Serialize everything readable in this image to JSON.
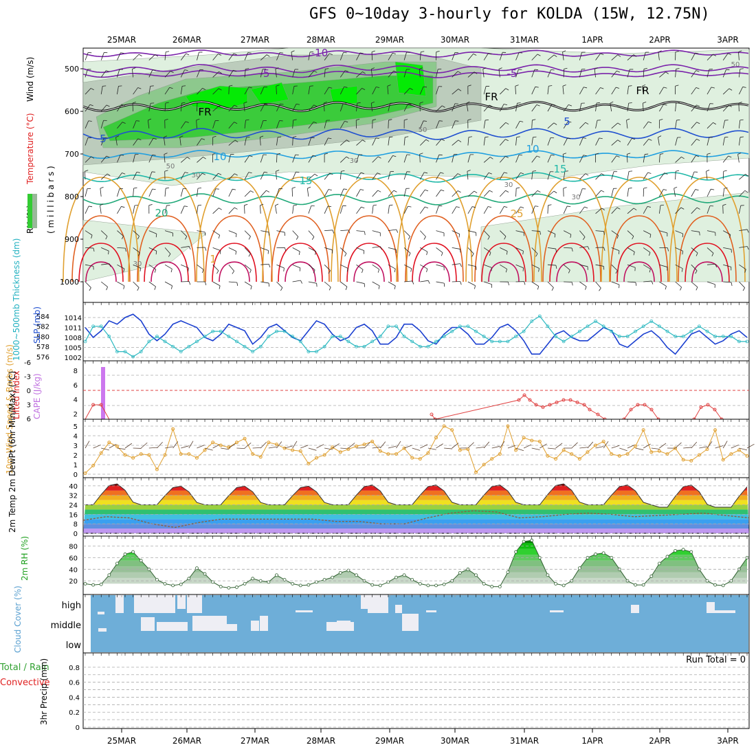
{
  "title": "GFS 0~10day 3-hourly for KOLDA (15W, 12.75N)",
  "date_labels": [
    "25MAR",
    "26MAR",
    "27MAR",
    "28MAR",
    "29MAR",
    "30MAR",
    "31MAR",
    "1APR",
    "2APR",
    "3APR"
  ],
  "colors": {
    "rh_green": "#33cc33",
    "rh_bright": "#00ee00",
    "rh_light": "#dcefdc",
    "rh_gray": "#b9c9b9",
    "purple": "#7a22aa",
    "blue": "#1f4fd0",
    "sky": "#1f9fe0",
    "teal": "#1fb8a8",
    "sea": "#1fa878",
    "orange": "#e0a030",
    "dkorange": "#e06020",
    "red": "#e01020",
    "cloud": "#6eaed8",
    "cape": "#cc77ee",
    "slp": "#1a3fd0",
    "thick": "#2ab8c0"
  },
  "chart_data": [
    {
      "type": "contour",
      "panel": "upper-air",
      "ylabel_parts": [
        "RH (%)",
        "Temperature (°C)",
        "Wind (m/s)"
      ],
      "ylabel2": "( m i l l i b a r s )",
      "y_ticks": [
        500,
        600,
        700,
        800,
        900,
        1000
      ],
      "ylim": [
        1000,
        450
      ],
      "rh_labels": [
        "50",
        "50",
        "30",
        "30",
        "30",
        "30",
        "30",
        "50"
      ],
      "temperature_labels": [
        "-10",
        "-5",
        "-5",
        "5",
        "5",
        "10",
        "10",
        "15",
        "15",
        "20",
        "25",
        "1",
        "FR",
        "FR",
        "FR"
      ]
    },
    {
      "type": "line",
      "panel": "slp-thickness",
      "ylabel_left": "1000~500mb Thickness (dm)",
      "ylabel_right": "SLP (mb)",
      "y_ticks_left": [
        576,
        578,
        580,
        582,
        584
      ],
      "y_ticks_right": [
        1002,
        1005,
        1008,
        1011,
        1014
      ],
      "series": [
        {
          "name": "SLP (mb)",
          "values": [
            1011,
            1008,
            1010,
            1013,
            1012,
            1014,
            1015,
            1013,
            1009,
            1007,
            1009,
            1012,
            1013,
            1012,
            1011,
            1008,
            1007,
            1009,
            1012,
            1011,
            1010,
            1006,
            1008,
            1011,
            1012,
            1010,
            1008,
            1007,
            1010,
            1013,
            1012,
            1009,
            1007,
            1008,
            1011,
            1012,
            1010,
            1006,
            1006,
            1008,
            1012,
            1012,
            1010,
            1007,
            1006,
            1009,
            1011,
            1011,
            1009,
            1006,
            1006,
            1008,
            1011,
            1012,
            1010,
            1007,
            1003,
            1003,
            1006,
            1009,
            1010,
            1008,
            1007,
            1007,
            1009,
            1011,
            1010,
            1006,
            1005,
            1007,
            1009,
            1010,
            1008,
            1005,
            1003,
            1006,
            1009,
            1010,
            1008,
            1006,
            1007,
            1009,
            1010,
            1008
          ]
        },
        {
          "name": "Thickness (dm)",
          "values": [
            579,
            582,
            582,
            580,
            577,
            577,
            576,
            577,
            579,
            580,
            579,
            578,
            577,
            578,
            579,
            580,
            581,
            581,
            580,
            579,
            578,
            577,
            578,
            580,
            581,
            581,
            580,
            579,
            577,
            577,
            578,
            580,
            580,
            579,
            578,
            578,
            579,
            580,
            582,
            582,
            580,
            579,
            578,
            578,
            579,
            580,
            581,
            582,
            582,
            581,
            580,
            579,
            579,
            579,
            580,
            581,
            583,
            584,
            582,
            580,
            579,
            580,
            581,
            582,
            583,
            582,
            581,
            580,
            580,
            581,
            582,
            583,
            582,
            581,
            580,
            580,
            581,
            582,
            581,
            580,
            580,
            580,
            579,
            579
          ]
        }
      ]
    },
    {
      "type": "line",
      "panel": "stability",
      "ylabel_left": "Lifted Index",
      "ylabel_right": "CAPE (J/kg)",
      "y_ticks_left": [
        -6,
        -3,
        0,
        3,
        6
      ],
      "y_ticks_right": [
        2,
        4,
        6,
        8
      ],
      "lifted_index": [
        null,
        3,
        3,
        null,
        null,
        null,
        null,
        null,
        null,
        6,
        null,
        null,
        null,
        null,
        null,
        null,
        null,
        null,
        null,
        null,
        null,
        null,
        null,
        null,
        null,
        null,
        null,
        null,
        null,
        null,
        null,
        null,
        null,
        null,
        null,
        null,
        null,
        null,
        null,
        null,
        null,
        null,
        null,
        null,
        null,
        null,
        null,
        null,
        null,
        null,
        null,
        null,
        null,
        null,
        null,
        null,
        null,
        null,
        null,
        null,
        null,
        null,
        null,
        null,
        null,
        null,
        null,
        null,
        null,
        null,
        null,
        null,
        null,
        null,
        null,
        null,
        null,
        null,
        null,
        null,
        null,
        null,
        null,
        null
      ],
      "lifted_index_late": [
        6,
        4,
        2,
        1,
        2,
        3,
        3,
        2,
        1,
        3,
        5,
        6
      ],
      "cape_bar": 9.5
    },
    {
      "type": "line",
      "panel": "wind-10m",
      "ylabel": "10m Wind Speed & Barbs (m/s)",
      "y_ticks": [
        0,
        1,
        2,
        3,
        4,
        5
      ],
      "values": [
        0.1,
        0.9,
        2.2,
        3.3,
        2.9,
        2.0,
        1.7,
        2.1,
        2.0,
        0.5,
        2.0,
        4.7,
        2.1,
        2.1,
        1.7,
        2.5,
        3.3,
        3.0,
        2.8,
        3.3,
        3.7,
        2.1,
        1.8,
        3.3,
        3.1,
        2.7,
        2.5,
        2.4,
        1.1,
        1.7,
        2.0,
        2.8,
        2.3,
        2.6,
        2.9,
        3.1,
        3.4,
        2.4,
        2.1,
        2.1,
        2.7,
        1.7,
        1.6,
        2.2,
        3.8,
        5.0,
        4.6,
        2.5,
        2.6,
        0.2,
        1.0,
        1.6,
        2.1,
        5.0,
        2.5,
        3.8,
        3.5,
        3.4,
        1.9,
        1.6,
        2.5,
        2.1,
        1.6,
        2.3,
        3.0,
        3.4,
        2.1,
        1.9,
        2.1,
        2.9,
        4.6,
        2.3,
        2.4,
        2.1,
        2.7,
        1.5,
        1.4,
        2.0,
        2.6,
        4.6,
        1.5,
        2.1,
        2.5,
        1.9
      ]
    },
    {
      "type": "area",
      "panel": "temperature-2m",
      "ylabel": "2m Temp 2m DewPt (6hr Min/Max) (°C)",
      "y_ticks": [
        0,
        8,
        16,
        24,
        32,
        40
      ],
      "temp_max": [
        42,
        40,
        40,
        40,
        41,
        41,
        41,
        42,
        41,
        41
      ],
      "temp_min": [
        24,
        24,
        24,
        24,
        24,
        24,
        24,
        24,
        24,
        22
      ],
      "dewpoint": [
        11,
        14,
        13,
        8,
        5,
        9,
        12,
        12,
        12,
        12,
        12,
        10,
        10,
        8,
        8,
        13,
        17,
        19,
        18,
        13,
        14,
        16,
        17,
        16,
        14,
        15,
        16,
        17,
        15,
        13
      ]
    },
    {
      "type": "area",
      "panel": "rh-2m",
      "ylabel": "2m RH (%)",
      "y_ticks": [
        20,
        40,
        60,
        80
      ],
      "values": [
        15,
        13,
        14,
        30,
        50,
        66,
        70,
        55,
        40,
        22,
        15,
        12,
        14,
        24,
        42,
        32,
        18,
        10,
        8,
        9,
        15,
        24,
        20,
        18,
        30,
        22,
        15,
        12,
        13,
        18,
        22,
        26,
        34,
        38,
        30,
        20,
        13,
        12,
        18,
        26,
        30,
        22,
        15,
        12,
        12,
        14,
        20,
        34,
        40,
        30,
        15,
        10,
        10,
        35,
        70,
        88,
        90,
        60,
        30,
        15,
        12,
        20,
        42,
        60,
        66,
        68,
        60,
        40,
        20,
        13,
        13,
        28,
        50,
        62,
        72,
        74,
        70,
        40,
        20,
        13,
        12,
        20,
        40,
        60,
        70,
        74,
        74
      ]
    },
    {
      "type": "heatmap",
      "panel": "cloud-cover",
      "ylabel": "Cloud Cover (%)",
      "level_labels": [
        "high",
        "middle",
        "low"
      ]
    },
    {
      "type": "bar",
      "panel": "precip",
      "ylabel_a": "Total / Rain",
      "ylabel_b": "Convective",
      "ylabel_c": "3hr Precip (mm)",
      "y_ticks": [
        0,
        0.2,
        0.4,
        0.6,
        0.8
      ],
      "annotation": "Run Total = 0",
      "values": []
    }
  ]
}
